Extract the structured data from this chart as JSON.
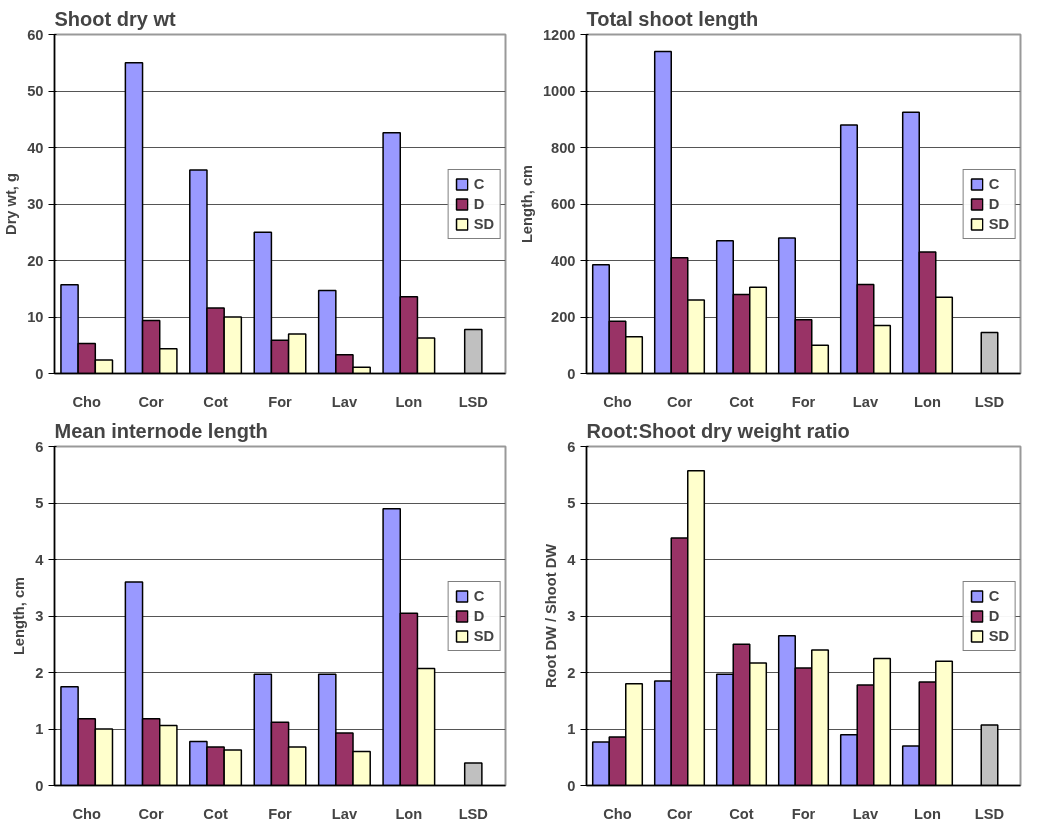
{
  "chart_data": [
    {
      "type": "bar",
      "title": "Shoot dry wt",
      "ylabel": "Dry wt, g",
      "categories": [
        "Cho",
        "Cor",
        "Cot",
        "For",
        "Lav",
        "Lon",
        "LSD"
      ],
      "ylim": [
        0,
        60
      ],
      "yticks": [
        0,
        10,
        20,
        30,
        40,
        50,
        60
      ],
      "grid": "y",
      "legend": "right",
      "series": [
        {
          "name": "C",
          "color": "#9999ff",
          "values": [
            15.7,
            55,
            36,
            25,
            14.7,
            42.6,
            null
          ]
        },
        {
          "name": "D",
          "color": "#993366",
          "values": [
            5.3,
            9.4,
            11.6,
            5.9,
            3.3,
            13.6,
            null
          ]
        },
        {
          "name": "SD",
          "color": "#ffffcc",
          "values": [
            2.4,
            4.4,
            10,
            7,
            1.1,
            6.3,
            null
          ]
        },
        {
          "color": "#c0c0c0",
          "values": [
            null,
            null,
            null,
            null,
            null,
            null,
            7.8
          ]
        }
      ]
    },
    {
      "type": "bar",
      "title": "Total shoot length",
      "ylabel": "Length, cm",
      "categories": [
        "Cho",
        "Cor",
        "Cot",
        "For",
        "Lav",
        "Lon",
        "LSD"
      ],
      "ylim": [
        0,
        1200
      ],
      "yticks": [
        0,
        200,
        400,
        600,
        800,
        1000,
        1200
      ],
      "grid": "y",
      "legend": "right",
      "series": [
        {
          "name": "C",
          "color": "#9999ff",
          "values": [
            385,
            1140,
            470,
            480,
            880,
            925,
            null
          ]
        },
        {
          "name": "D",
          "color": "#993366",
          "values": [
            185,
            410,
            280,
            190,
            315,
            430,
            null
          ]
        },
        {
          "name": "SD",
          "color": "#ffffcc",
          "values": [
            130,
            260,
            305,
            100,
            170,
            270,
            null
          ]
        },
        {
          "color": "#c0c0c0",
          "values": [
            null,
            null,
            null,
            null,
            null,
            null,
            145
          ]
        }
      ]
    },
    {
      "type": "bar",
      "title": "Mean internode length",
      "ylabel": "Length, cm",
      "categories": [
        "Cho",
        "Cor",
        "Cot",
        "For",
        "Lav",
        "Lon",
        "LSD"
      ],
      "ylim": [
        0,
        6
      ],
      "yticks": [
        0,
        1,
        2,
        3,
        4,
        5,
        6
      ],
      "grid": "y",
      "legend": "right",
      "series": [
        {
          "name": "C",
          "color": "#9999ff",
          "values": [
            1.75,
            3.6,
            0.78,
            1.97,
            1.97,
            4.9,
            null
          ]
        },
        {
          "name": "D",
          "color": "#993366",
          "values": [
            1.18,
            1.18,
            0.68,
            1.12,
            0.93,
            3.05,
            null
          ]
        },
        {
          "name": "SD",
          "color": "#ffffcc",
          "values": [
            1.0,
            1.06,
            0.63,
            0.68,
            0.6,
            2.07,
            null
          ]
        },
        {
          "color": "#c0c0c0",
          "values": [
            null,
            null,
            null,
            null,
            null,
            null,
            0.4
          ]
        }
      ]
    },
    {
      "type": "bar",
      "title": "Root:Shoot dry weight ratio",
      "ylabel": "Root DW / Shoot DW",
      "categories": [
        "Cho",
        "Cor",
        "Cot",
        "For",
        "Lav",
        "Lon",
        "LSD"
      ],
      "ylim": [
        0,
        6
      ],
      "yticks": [
        0,
        1,
        2,
        3,
        4,
        5,
        6
      ],
      "grid": "y",
      "legend": "right",
      "series": [
        {
          "name": "C",
          "color": "#9999ff",
          "values": [
            0.77,
            1.85,
            1.97,
            2.65,
            0.9,
            0.7,
            null
          ]
        },
        {
          "name": "D",
          "color": "#993366",
          "values": [
            0.86,
            4.38,
            2.5,
            2.08,
            1.78,
            1.83,
            null
          ]
        },
        {
          "name": "SD",
          "color": "#ffffcc",
          "values": [
            1.8,
            5.57,
            2.17,
            2.4,
            2.25,
            2.2,
            null
          ]
        },
        {
          "color": "#c0c0c0",
          "values": [
            null,
            null,
            null,
            null,
            null,
            null,
            1.07
          ]
        }
      ]
    }
  ]
}
